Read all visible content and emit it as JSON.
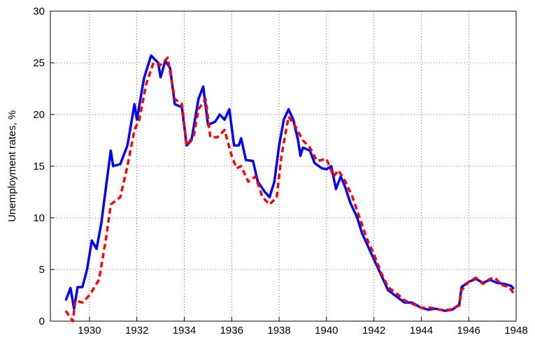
{
  "chart_data": {
    "type": "line",
    "ylabel": "Unemployment rates, %",
    "xlim": [
      1928.35,
      1948
    ],
    "xticks": [
      1930,
      1932,
      1934,
      1936,
      1938,
      1940,
      1942,
      1944,
      1946,
      1948
    ],
    "ylim": [
      0,
      30
    ],
    "yticks": [
      0,
      5,
      10,
      15,
      20,
      25,
      30
    ],
    "grid": true,
    "series": [
      {
        "color": "#0000ff",
        "linestyle": "solid",
        "x": [
          1929.0,
          1929.2,
          1929.35,
          1929.5,
          1929.7,
          1929.9,
          1930.1,
          1930.3,
          1930.5,
          1930.7,
          1930.9,
          1931.0,
          1931.3,
          1931.6,
          1931.9,
          1932.0,
          1932.3,
          1932.6,
          1932.9,
          1933.0,
          1933.2,
          1933.4,
          1933.6,
          1933.9,
          1934.1,
          1934.3,
          1934.6,
          1934.8,
          1935.0,
          1935.3,
          1935.5,
          1935.7,
          1935.9,
          1936.1,
          1936.3,
          1936.4,
          1936.6,
          1936.9,
          1937.1,
          1937.4,
          1937.6,
          1937.8,
          1938.0,
          1938.2,
          1938.4,
          1938.6,
          1938.8,
          1938.9,
          1939.0,
          1939.3,
          1939.5,
          1939.8,
          1940.0,
          1940.2,
          1940.4,
          1940.6,
          1940.8,
          1941.0,
          1941.3,
          1941.5,
          1941.8,
          1942.0,
          1942.3,
          1942.6,
          1943.0,
          1943.3,
          1943.6,
          1944.0,
          1944.3,
          1944.6,
          1945.0,
          1945.3,
          1945.6,
          1945.7,
          1946.0,
          1946.3,
          1946.6,
          1946.9,
          1947.2,
          1947.5,
          1947.8,
          1947.9
        ],
        "values": [
          2,
          3.2,
          1.2,
          3.3,
          3.3,
          5,
          7.8,
          7,
          9.5,
          13,
          16.5,
          15,
          15.2,
          17,
          21,
          19.5,
          23.5,
          25.7,
          25,
          23.6,
          25.2,
          24.5,
          21,
          20.7,
          17,
          17.5,
          21.5,
          22.7,
          19,
          19.3,
          20,
          19.5,
          20.5,
          17,
          17,
          17.7,
          15.6,
          15.5,
          13.5,
          12.5,
          12,
          13.5,
          17,
          19.5,
          20.5,
          19.5,
          17.5,
          16,
          16.8,
          16.5,
          15.3,
          14.8,
          14.7,
          15,
          12.8,
          14,
          12.9,
          11.5,
          10,
          8.5,
          7,
          6,
          4.5,
          3,
          2.3,
          1.8,
          1.8,
          1.3,
          1.1,
          1.2,
          1.0,
          1.1,
          1.6,
          3.3,
          3.8,
          4.1,
          3.7,
          4.0,
          3.7,
          3.6,
          3.4,
          3.1
        ]
      },
      {
        "color": "#ff0000",
        "linestyle": "dashed",
        "x": [
          1929.0,
          1929.3,
          1929.4,
          1929.7,
          1930.0,
          1930.4,
          1930.7,
          1930.9,
          1931.3,
          1931.6,
          1931.9,
          1932.1,
          1932.4,
          1932.7,
          1933.0,
          1933.3,
          1933.6,
          1933.9,
          1934.1,
          1934.4,
          1934.6,
          1934.9,
          1935.1,
          1935.4,
          1935.7,
          1936.0,
          1936.2,
          1936.4,
          1936.7,
          1937.0,
          1937.3,
          1937.6,
          1937.9,
          1938.1,
          1938.4,
          1938.7,
          1939.0,
          1939.3,
          1939.6,
          1940.0,
          1940.3,
          1940.5,
          1940.8,
          1941.1,
          1941.4,
          1941.7,
          1942.0,
          1942.3,
          1942.6,
          1943.0,
          1943.3,
          1943.7,
          1944.0,
          1944.4,
          1944.8,
          1945.2,
          1945.6,
          1945.7,
          1946.0,
          1946.3,
          1946.6,
          1946.9,
          1947.1,
          1947.4,
          1947.7,
          1947.9
        ],
        "values": [
          1,
          0,
          2,
          1.8,
          2.5,
          4,
          8,
          11.3,
          12,
          15,
          18.5,
          19.5,
          23,
          25,
          24.8,
          25.5,
          21.5,
          21,
          17,
          18,
          20.5,
          21.5,
          17.8,
          17.8,
          18.5,
          16,
          14.8,
          15,
          13.5,
          14,
          12,
          11.3,
          12,
          16,
          19.8,
          18.8,
          17.5,
          16.8,
          15.5,
          15.7,
          14,
          14.6,
          13.5,
          12,
          10,
          8,
          6.5,
          4.7,
          3.3,
          2.6,
          2,
          1.6,
          1.3,
          1.3,
          1.1,
          1.1,
          1.5,
          3,
          3.8,
          4.2,
          3.6,
          4.1,
          4.2,
          3.5,
          3.3,
          2.7
        ]
      }
    ]
  }
}
